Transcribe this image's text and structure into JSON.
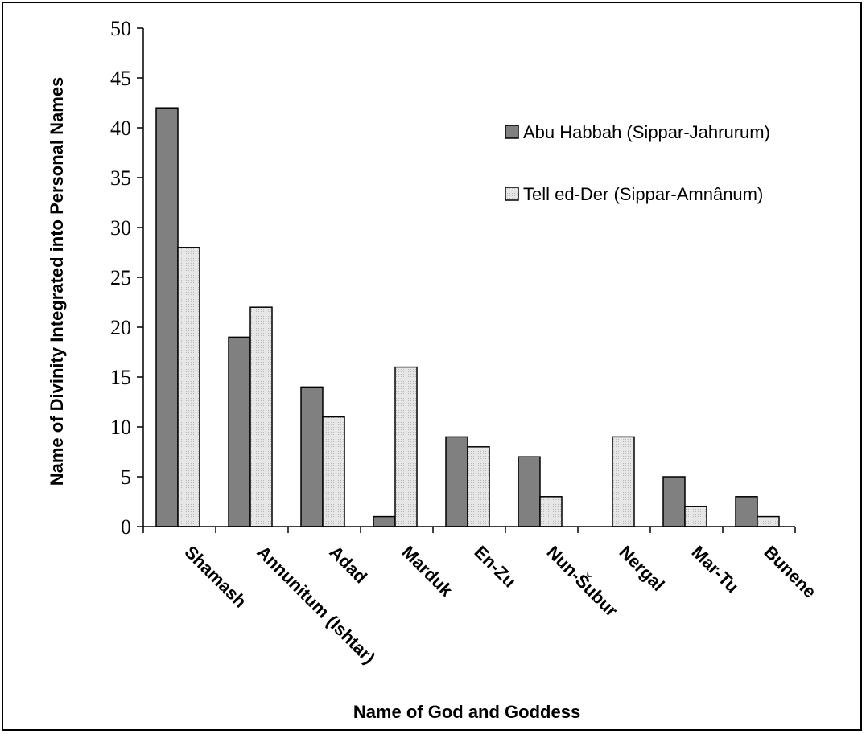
{
  "chart_data": {
    "type": "bar",
    "title": "",
    "xlabel": "Name of God and Goddess",
    "ylabel": "Name of Divinity Integrated into Personal Names",
    "ylim": [
      0,
      50
    ],
    "yticks": [
      0,
      5,
      10,
      15,
      20,
      25,
      30,
      35,
      40,
      45,
      50
    ],
    "categories": [
      "Shamash",
      "Annunitum (Ishtar)",
      "Adad",
      "Marduk",
      "En-Zu",
      "Nun-Šubur",
      "Nergal",
      "Mar-Tu",
      "Bunene"
    ],
    "series": [
      {
        "name": "Abu Habbah (Sippar-Jahrurum)",
        "color": "#808080",
        "values": [
          42,
          19,
          14,
          1,
          9,
          7,
          0,
          5,
          3
        ]
      },
      {
        "name": "Tell ed-Der (Sippar-Amnânum)",
        "color": "#e0e0e0",
        "values": [
          28,
          22,
          11,
          16,
          8,
          3,
          9,
          2,
          1
        ]
      }
    ],
    "grid": false,
    "legend_position": "top-right"
  }
}
